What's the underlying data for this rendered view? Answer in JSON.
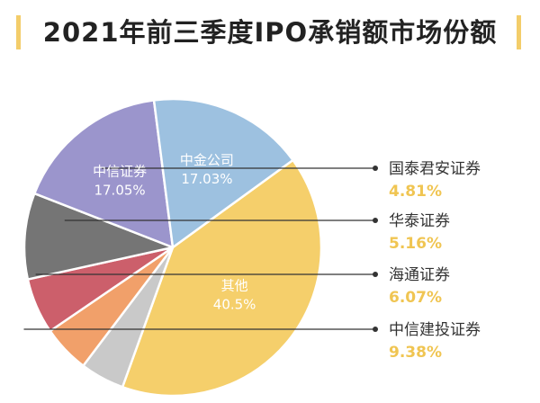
{
  "title": "2021年前三季度IPO承销额市场份额",
  "colors": {
    "accent_bar": "#f3cd6a",
    "value_text": "#f0c552",
    "leader_line": "#333333"
  },
  "chart_data": {
    "type": "pie",
    "title": "2021年前三季度IPO承销额市场份额",
    "slices": [
      {
        "name": "其他",
        "value": 40.5,
        "label": "40.5%",
        "color": "#f5cf6b",
        "labelled": "inside"
      },
      {
        "name": "国泰君安证券",
        "value": 4.81,
        "label": "4.81%",
        "color": "#c9c9c9",
        "labelled": "legend"
      },
      {
        "name": "华泰证券",
        "value": 5.16,
        "label": "5.16%",
        "color": "#f1a06a",
        "labelled": "legend"
      },
      {
        "name": "海通证券",
        "value": 6.07,
        "label": "6.07%",
        "color": "#cc5f6b",
        "labelled": "legend"
      },
      {
        "name": "中信建投证券",
        "value": 9.38,
        "label": "9.38%",
        "color": "#757575",
        "labelled": "legend"
      },
      {
        "name": "中信证券",
        "value": 17.05,
        "label": "17.05%",
        "color": "#9b95cc",
        "labelled": "inside"
      },
      {
        "name": "中金公司",
        "value": 17.03,
        "label": "17.03%",
        "color": "#9dc1e0",
        "labelled": "inside"
      }
    ]
  }
}
